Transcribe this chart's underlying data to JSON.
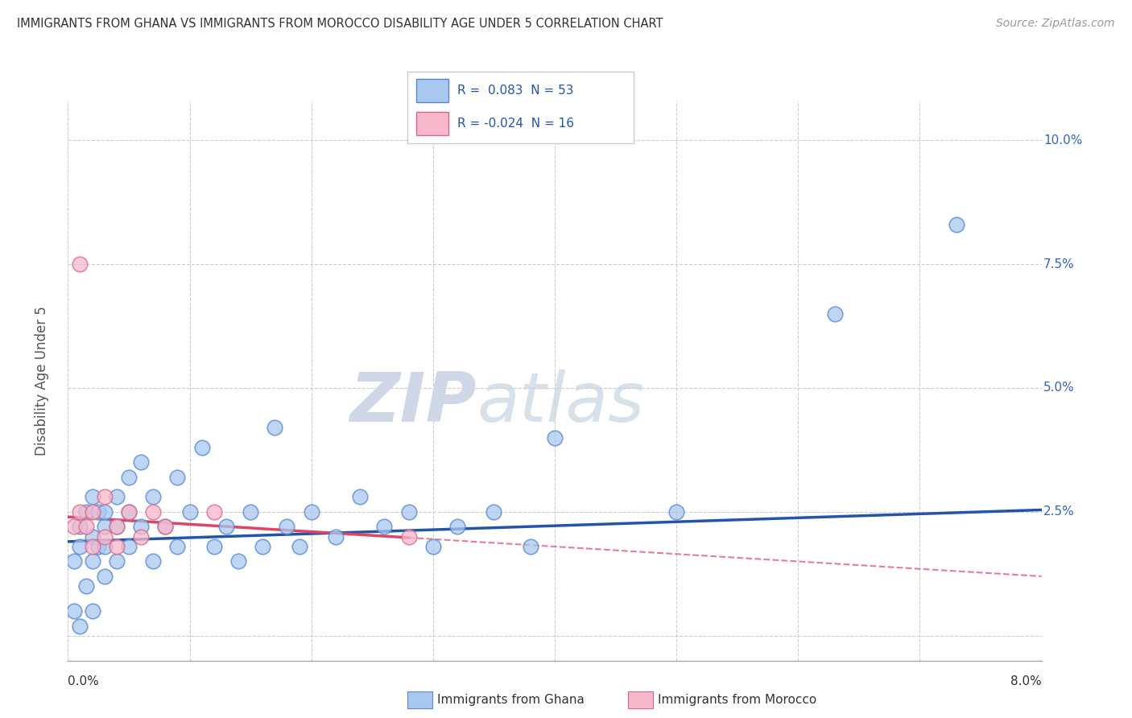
{
  "title": "IMMIGRANTS FROM GHANA VS IMMIGRANTS FROM MOROCCO DISABILITY AGE UNDER 5 CORRELATION CHART",
  "source": "Source: ZipAtlas.com",
  "ylabel": "Disability Age Under 5",
  "ghana_color": "#a8c8f0",
  "ghana_edge_color": "#5588cc",
  "morocco_color": "#f8b8cc",
  "morocco_edge_color": "#dd6688",
  "ghana_line_color": "#2255aa",
  "morocco_line_color": "#dd4466",
  "ghana_label": "Immigrants from Ghana",
  "morocco_label": "Immigrants from Morocco",
  "watermark_zip": "ZIP",
  "watermark_atlas": "atlas",
  "xlim": [
    0.0,
    0.08
  ],
  "ylim": [
    -0.005,
    0.108
  ],
  "background_color": "#ffffff",
  "ghana_scatter_x": [
    0.0005,
    0.0005,
    0.001,
    0.001,
    0.001,
    0.0015,
    0.0015,
    0.002,
    0.002,
    0.002,
    0.002,
    0.0025,
    0.0025,
    0.003,
    0.003,
    0.003,
    0.003,
    0.004,
    0.004,
    0.004,
    0.005,
    0.005,
    0.005,
    0.006,
    0.006,
    0.007,
    0.007,
    0.008,
    0.009,
    0.009,
    0.01,
    0.011,
    0.012,
    0.013,
    0.014,
    0.015,
    0.016,
    0.017,
    0.018,
    0.019,
    0.02,
    0.022,
    0.024,
    0.026,
    0.028,
    0.03,
    0.032,
    0.035,
    0.038,
    0.04,
    0.05,
    0.063,
    0.073
  ],
  "ghana_scatter_y": [
    0.005,
    0.015,
    0.018,
    0.022,
    0.002,
    0.025,
    0.01,
    0.02,
    0.028,
    0.015,
    0.005,
    0.018,
    0.025,
    0.022,
    0.018,
    0.025,
    0.012,
    0.028,
    0.022,
    0.015,
    0.032,
    0.018,
    0.025,
    0.022,
    0.035,
    0.028,
    0.015,
    0.022,
    0.018,
    0.032,
    0.025,
    0.038,
    0.018,
    0.022,
    0.015,
    0.025,
    0.018,
    0.042,
    0.022,
    0.018,
    0.025,
    0.02,
    0.028,
    0.022,
    0.025,
    0.018,
    0.022,
    0.025,
    0.018,
    0.04,
    0.025,
    0.065,
    0.083
  ],
  "morocco_scatter_x": [
    0.0005,
    0.001,
    0.001,
    0.0015,
    0.002,
    0.002,
    0.003,
    0.003,
    0.004,
    0.004,
    0.005,
    0.006,
    0.007,
    0.008,
    0.012,
    0.028
  ],
  "morocco_scatter_y": [
    0.022,
    0.025,
    0.075,
    0.022,
    0.018,
    0.025,
    0.02,
    0.028,
    0.022,
    0.018,
    0.025,
    0.02,
    0.025,
    0.022,
    0.025,
    0.02
  ]
}
